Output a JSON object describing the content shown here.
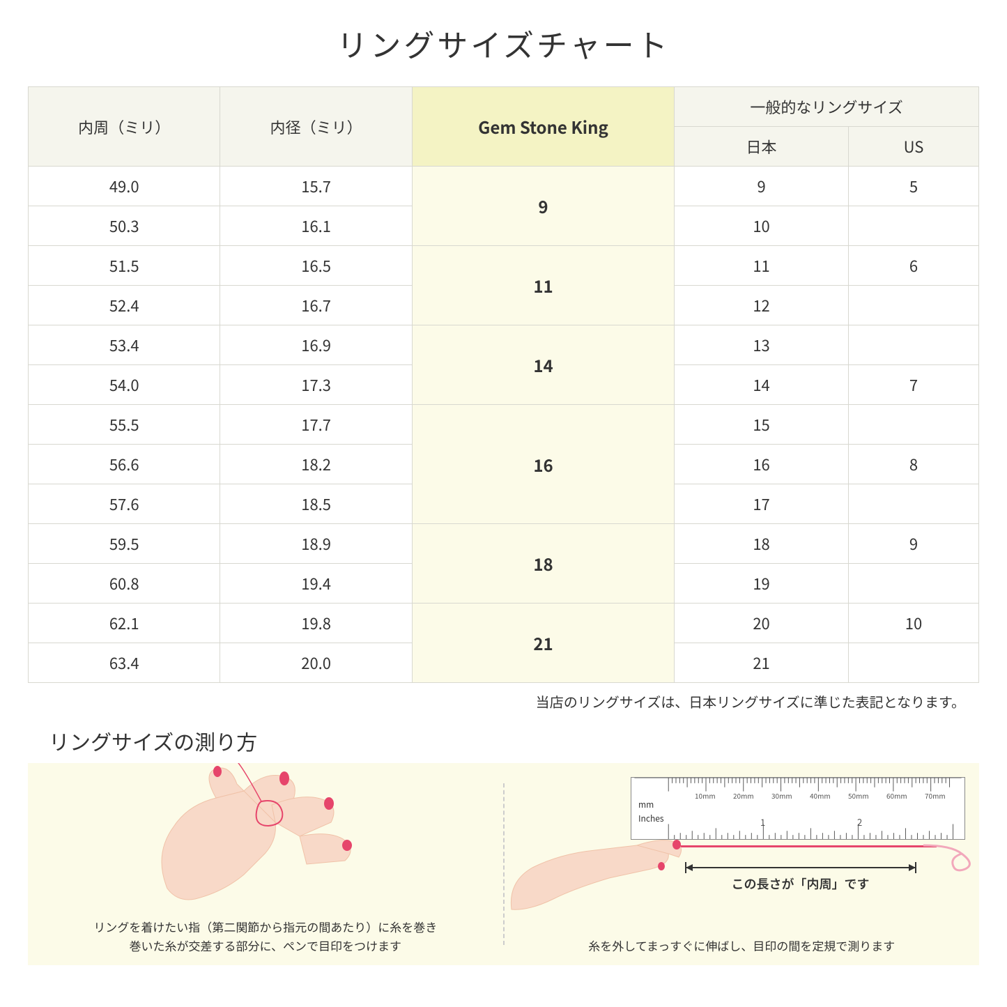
{
  "title": "リングサイズチャート",
  "table": {
    "headers": {
      "circumference": "内周（ミリ）",
      "diameter": "内径（ミリ）",
      "gsk": "Gem Stone King",
      "general": "一般的なリングサイズ",
      "japan": "日本",
      "us": "US"
    },
    "groups": [
      {
        "gsk": "9",
        "rows": [
          {
            "c": "49.0",
            "d": "15.7",
            "jp": "9",
            "us": "5"
          },
          {
            "c": "50.3",
            "d": "16.1",
            "jp": "10",
            "us": ""
          }
        ]
      },
      {
        "gsk": "11",
        "rows": [
          {
            "c": "51.5",
            "d": "16.5",
            "jp": "11",
            "us": "6"
          },
          {
            "c": "52.4",
            "d": "16.7",
            "jp": "12",
            "us": ""
          }
        ]
      },
      {
        "gsk": "14",
        "rows": [
          {
            "c": "53.4",
            "d": "16.9",
            "jp": "13",
            "us": ""
          },
          {
            "c": "54.0",
            "d": "17.3",
            "jp": "14",
            "us": "7"
          }
        ]
      },
      {
        "gsk": "16",
        "rows": [
          {
            "c": "55.5",
            "d": "17.7",
            "jp": "15",
            "us": ""
          },
          {
            "c": "56.6",
            "d": "18.2",
            "jp": "16",
            "us": "8"
          },
          {
            "c": "57.6",
            "d": "18.5",
            "jp": "17",
            "us": ""
          }
        ]
      },
      {
        "gsk": "18",
        "rows": [
          {
            "c": "59.5",
            "d": "18.9",
            "jp": "18",
            "us": "9"
          },
          {
            "c": "60.8",
            "d": "19.4",
            "jp": "19",
            "us": ""
          }
        ]
      },
      {
        "gsk": "21",
        "rows": [
          {
            "c": "62.1",
            "d": "19.8",
            "jp": "20",
            "us": "10"
          },
          {
            "c": "63.4",
            "d": "20.0",
            "jp": "21",
            "us": ""
          }
        ]
      }
    ]
  },
  "note": "当店のリングサイズは、日本リングサイズに準じた表記となります。",
  "howto": {
    "title": "リングサイズの測り方",
    "left_caption": "リングを着けたい指（第二関節から指元の間あたり）に糸を巻き\n巻いた糸が交差する部分に、ペンで目印をつけます",
    "right_caption": "糸を外してまっすぐに伸ばし、目印の間を定規で測ります",
    "arrow_label": "この長さが「内周」です",
    "ruler_mm": "mm",
    "ruler_in": "Inches",
    "ruler_mm_labels": [
      "10mm",
      "20mm",
      "30mm",
      "40mm",
      "50mm",
      "60mm",
      "70mm"
    ],
    "ruler_in_labels": [
      "1",
      "2"
    ]
  },
  "colors": {
    "header_bg": "#f5f5ed",
    "gsk_header_bg": "#f4f3c4",
    "gsk_cell_bg": "#fcfbe8",
    "border": "#d8d8d0",
    "howto_bg": "#fcfbe8",
    "hand_skin": "#f8d9c8",
    "hand_shadow": "#f0c2a8",
    "nail": "#e6456b",
    "thread": "#e6456b"
  }
}
